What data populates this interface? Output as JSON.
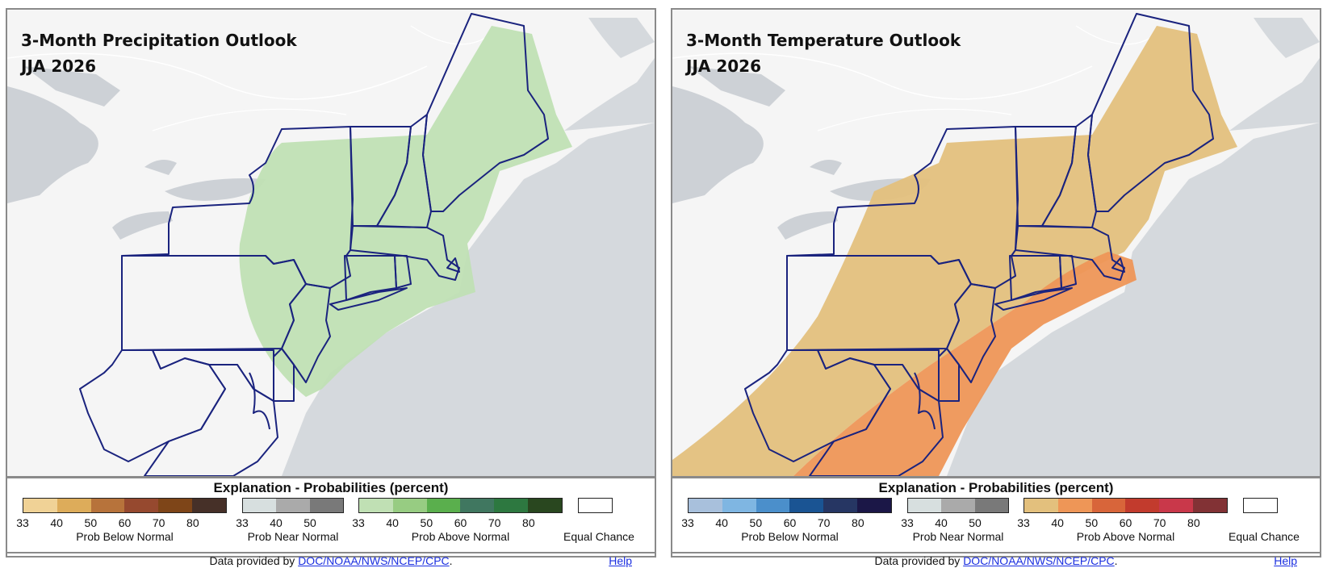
{
  "panels": [
    {
      "title_line1": "3-Month Precipitation Outlook",
      "title_line2": "JJA 2026",
      "legend": {
        "title": "Explanation - Probabilities (percent)",
        "below": {
          "label": "Prob Below Normal",
          "ticks": [
            "33",
            "40",
            "50",
            "60",
            "70",
            "80"
          ],
          "colors": [
            "#f0d296",
            "#ddac5a",
            "#b7733b",
            "#96492f",
            "#7e4518",
            "#463028"
          ]
        },
        "near": {
          "label": "Prob Near Normal",
          "ticks": [
            "33",
            "40",
            "50"
          ],
          "colors": [
            "#d7dfdf",
            "#aaaaaa",
            "#797979"
          ]
        },
        "above": {
          "label": "Prob Above Normal",
          "ticks": [
            "33",
            "40",
            "50",
            "60",
            "70",
            "80"
          ],
          "colors": [
            "#c0e0b4",
            "#97cc82",
            "#5aaf4d",
            "#407760",
            "#2d7840",
            "#29471f"
          ]
        },
        "equal_chance": "Equal Chance"
      },
      "outlook_category": "Prob Above Normal",
      "outlook_color": "#c0e0b4"
    },
    {
      "title_line1": "3-Month Temperature Outlook",
      "title_line2": "JJA 2026",
      "legend": {
        "title": "Explanation - Probabilities (percent)",
        "below": {
          "label": "Prob Below Normal",
          "ticks": [
            "33",
            "40",
            "50",
            "60",
            "70",
            "80"
          ],
          "colors": [
            "#a8c0dc",
            "#7fb6e2",
            "#4b8fcb",
            "#1a5493",
            "#263663",
            "#1b1747"
          ]
        },
        "near": {
          "label": "Prob Near Normal",
          "ticks": [
            "33",
            "40",
            "50"
          ],
          "colors": [
            "#d7dfdf",
            "#aaaaaa",
            "#797979"
          ]
        },
        "above": {
          "label": "Prob Above Normal",
          "ticks": [
            "33",
            "40",
            "50",
            "60",
            "70",
            "80"
          ],
          "colors": [
            "#e3c07d",
            "#ee9657",
            "#d8653a",
            "#c23b2d",
            "#c9384a",
            "#823235"
          ]
        },
        "equal_chance": "Equal Chance"
      },
      "outlook_categories": [
        "Prob Above Normal 33-40",
        "Prob Above Normal 40-50"
      ],
      "outlook_colors": [
        "#e3c07d",
        "#ee9657"
      ]
    }
  ],
  "footer": {
    "prefix": "Data provided by ",
    "link": "DOC/NOAA/NWS/NCEP/CPC",
    "suffix": ".",
    "help": "Help"
  },
  "map_colors": {
    "land": "#f5f5f5",
    "water": "#d5d9dd",
    "lakes": "#cdd1d6",
    "roads": "#ffffff",
    "borders": "#1a237e"
  }
}
